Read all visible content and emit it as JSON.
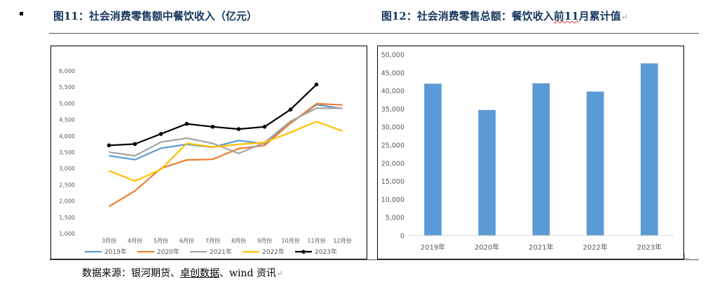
{
  "header": {
    "fig11_title": "图11：社会消费零售额中餐饮收入（亿元）",
    "fig12_title_a": "图12：社会消费零售总额：餐饮收入",
    "fig12_title_b": "前11",
    "fig12_title_c": "月累计值",
    "paragraph_mark": "↵"
  },
  "source": {
    "prefix": "数据来源：银河期货、",
    "link": "卓创数据",
    "suffix": "、wind 资讯",
    "mark": "↵"
  },
  "chart_data": [
    {
      "type": "line",
      "title": "",
      "categories": [
        "3月份",
        "4月份",
        "5月份",
        "6月份",
        "7月份",
        "8月份",
        "9月份",
        "10月份",
        "11月份",
        "12月份"
      ],
      "ylim": [
        1000,
        6000
      ],
      "yticks": [
        1000,
        1500,
        2000,
        2500,
        3000,
        3500,
        4000,
        4500,
        5000,
        5500,
        6000
      ],
      "ytick_labels": [
        "1,000",
        "1,500",
        "2,000",
        "2,500",
        "3,000",
        "3,500",
        "4,000",
        "4,500",
        "5,000",
        "5,500",
        "6,000"
      ],
      "grid": false,
      "legend": "bottom",
      "series": [
        {
          "name": "2019年",
          "color": "#5b9bd5",
          "values": [
            3390,
            3270,
            3620,
            3740,
            3650,
            3860,
            3760,
            4390,
            4960,
            4840
          ]
        },
        {
          "name": "2020年",
          "color": "#ed7d31",
          "values": [
            1830,
            2310,
            3000,
            3260,
            3280,
            3610,
            3710,
            4390,
            4990,
            4950
          ]
        },
        {
          "name": "2021年",
          "color": "#a5a5a5",
          "values": [
            3500,
            3390,
            3810,
            3930,
            3770,
            3460,
            3800,
            4450,
            4850,
            4850
          ]
        },
        {
          "name": "2022年",
          "color": "#ffc000",
          "values": [
            2930,
            2610,
            2970,
            3770,
            3660,
            3740,
            3800,
            4110,
            4440,
            4150
          ]
        },
        {
          "name": "2023年",
          "color": "#000000",
          "values": [
            3710,
            3750,
            4060,
            4370,
            4280,
            4210,
            4280,
            4810,
            5580,
            null
          ]
        }
      ]
    },
    {
      "type": "bar",
      "title": "",
      "categories": [
        "2019年",
        "2020年",
        "2021年",
        "2022年",
        "2023年"
      ],
      "values": [
        42000,
        34700,
        42100,
        39800,
        47600
      ],
      "color": "#5b9bd5",
      "ylim": [
        0,
        50000
      ],
      "yticks": [
        0,
        5000,
        10000,
        15000,
        20000,
        25000,
        30000,
        35000,
        40000,
        45000,
        50000
      ],
      "ytick_labels": [
        "0",
        "5,000",
        "10,000",
        "15,000",
        "20,000",
        "25,000",
        "30,000",
        "35,000",
        "40,000",
        "45,000",
        "50,000"
      ],
      "grid": false,
      "legend": "none"
    }
  ]
}
